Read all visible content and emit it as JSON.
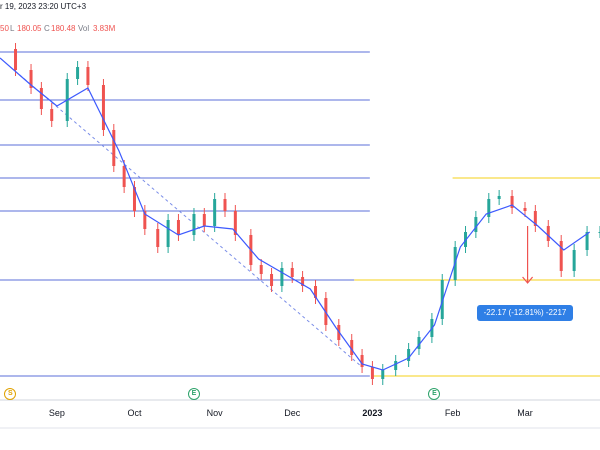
{
  "header": {
    "datetime": "r 19, 2023 23:20 UTC+3",
    "low_label": "L",
    "low_value": "180.05",
    "close_label": "C",
    "close_value": "180.48",
    "close_prefix_value": "50",
    "volume_label": "Vol",
    "volume_value": "3.83M"
  },
  "measure_tooltip": "-22.17 (-12.81%) -2217",
  "events": {
    "dividend_icon": "S",
    "earnings_icon": "E"
  },
  "colors": {
    "up": "#26a69a",
    "down": "#ef5350",
    "ma": "#3d5afe",
    "level_blue": "#5b6fd8",
    "level_yellow": "#f5d21a",
    "accent": "#2f7fe6"
  },
  "chart_data": {
    "type": "line",
    "title": "",
    "x_tick_labels": [
      "Sep",
      "Oct",
      "Nov",
      "Dec",
      "2023",
      "Feb",
      "Mar"
    ],
    "x_tick_dates": [
      "2022-09-01",
      "2022-10-01",
      "2022-11-01",
      "2022-12-01",
      "2023-01-01",
      "2023-02-01",
      "2023-03-01"
    ],
    "x_range": [
      "2022-08-10",
      "2023-03-30"
    ],
    "ylim": [
      110,
      225
    ],
    "grid": false,
    "legend": "none",
    "series": [
      {
        "kind": "close",
        "x": [
          "2022-08-10",
          "2022-08-16",
          "2022-08-22",
          "2022-08-26",
          "2022-08-30",
          "2022-09-05",
          "2022-09-09",
          "2022-09-13",
          "2022-09-19",
          "2022-09-23",
          "2022-09-27",
          "2022-10-01",
          "2022-10-05",
          "2022-10-10",
          "2022-10-14",
          "2022-10-18",
          "2022-10-24",
          "2022-10-28",
          "2022-11-01",
          "2022-11-05",
          "2022-11-09",
          "2022-11-15",
          "2022-11-19",
          "2022-11-23",
          "2022-11-27",
          "2022-12-01",
          "2022-12-05",
          "2022-12-10",
          "2022-12-14",
          "2022-12-19",
          "2022-12-24",
          "2022-12-28",
          "2023-01-01",
          "2023-01-05",
          "2023-01-10",
          "2023-01-15",
          "2023-01-19",
          "2023-01-24",
          "2023-01-28",
          "2023-02-02",
          "2023-02-06",
          "2023-02-10",
          "2023-02-15",
          "2023-02-19",
          "2023-02-24",
          "2023-03-01",
          "2023-03-05",
          "2023-03-10",
          "2023-03-15",
          "2023-03-20",
          "2023-03-25",
          "2023-03-30"
        ],
        "values": [
          222,
          215,
          209,
          202,
          198,
          212,
          216,
          210,
          195,
          183,
          176,
          168,
          162,
          156,
          165,
          160,
          167,
          163,
          172,
          168,
          160,
          150,
          147,
          143,
          149,
          146,
          143,
          139,
          130,
          125,
          120,
          116,
          112,
          115,
          118,
          122,
          126,
          132,
          145,
          156,
          161,
          166,
          172,
          173,
          169,
          168,
          163,
          158,
          148,
          155,
          161,
          161
        ]
      },
      {
        "kind": "moving_average",
        "x": [
          "2022-08-10",
          "2022-08-22",
          "2022-09-01",
          "2022-09-13",
          "2022-09-25",
          "2022-10-05",
          "2022-10-18",
          "2022-10-28",
          "2022-11-08",
          "2022-11-18",
          "2022-11-28",
          "2022-12-08",
          "2022-12-18",
          "2022-12-28",
          "2023-01-05",
          "2023-01-15",
          "2023-01-25",
          "2023-02-04",
          "2023-02-14",
          "2023-02-24",
          "2023-03-06",
          "2023-03-16",
          "2023-03-26"
        ],
        "values": [
          219,
          210,
          203,
          209,
          188,
          167,
          160,
          163,
          162,
          152,
          147,
          142,
          129,
          117,
          115,
          119,
          130,
          156,
          167,
          170,
          163,
          155,
          161
        ]
      }
    ],
    "horizontal_levels": [
      {
        "value": 221,
        "color": "blue",
        "from": "2022-08-10",
        "to": "2022-12-31"
      },
      {
        "value": 205,
        "color": "blue",
        "from": "2022-08-10",
        "to": "2022-12-31"
      },
      {
        "value": 190,
        "color": "blue",
        "from": "2022-08-10",
        "to": "2022-12-31"
      },
      {
        "value": 179,
        "color": "blue",
        "from": "2022-08-10",
        "to": "2022-12-31"
      },
      {
        "value": 168,
        "color": "blue",
        "from": "2022-08-10",
        "to": "2022-12-31"
      },
      {
        "value": 145,
        "color": "blue",
        "from": "2022-08-10",
        "to": "2022-12-25"
      },
      {
        "value": 113,
        "color": "blue",
        "from": "2022-08-10",
        "to": "2022-12-31"
      },
      {
        "value": 179,
        "color": "yellow",
        "from": "2023-02-01",
        "to": "2023-03-30"
      },
      {
        "value": 145,
        "color": "yellow",
        "from": "2022-12-25",
        "to": "2023-03-30"
      },
      {
        "value": 113,
        "color": "yellow",
        "from": "2023-01-01",
        "to": "2023-03-30"
      }
    ],
    "trend_line": {
      "x": [
        "2022-08-14",
        "2022-12-28"
      ],
      "y": [
        216,
        116
      ]
    },
    "measure_arrow": {
      "x": "2023-03-02",
      "from": 163,
      "to": 145
    },
    "event_markers": [
      {
        "type": "dividend",
        "x": "2022-08-14"
      },
      {
        "type": "earnings",
        "x": "2022-10-24"
      },
      {
        "type": "earnings",
        "x": "2023-01-25"
      }
    ]
  }
}
